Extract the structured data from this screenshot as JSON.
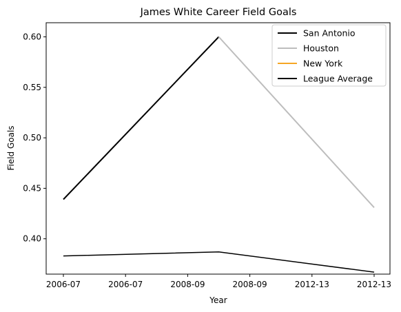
{
  "chart_data": {
    "type": "line",
    "title": "James White  Career Field Goals",
    "xlabel": "Year",
    "ylabel": "Field Goals",
    "x_tick_labels": [
      "2006-07",
      "2006-07",
      "2008-09",
      "2008-09",
      "2012-13",
      "2012-13"
    ],
    "y_ticks": [
      0.4,
      0.45,
      0.5,
      0.55,
      0.6
    ],
    "y_tick_labels": [
      "0.40",
      "0.45",
      "0.50",
      "0.55",
      "0.60"
    ],
    "ylim": [
      0.365,
      0.614
    ],
    "x_range_index": [
      0,
      2
    ],
    "grid": false,
    "legend_position": "top-right",
    "series": [
      {
        "name": "San Antonio",
        "color": "#000000",
        "x": [
          0,
          1
        ],
        "y": [
          0.439,
          0.6
        ],
        "width": "thick"
      },
      {
        "name": "Houston",
        "color": "#bdbdbd",
        "x": [
          1,
          2
        ],
        "y": [
          0.6,
          0.431
        ],
        "width": "thick"
      },
      {
        "name": "New York",
        "color": "#f5a623",
        "x": [],
        "y": [],
        "width": "thick"
      },
      {
        "name": "League Average",
        "color": "#000000",
        "x": [
          0,
          1,
          2
        ],
        "y": [
          0.383,
          0.387,
          0.367
        ],
        "width": "thin"
      }
    ]
  }
}
